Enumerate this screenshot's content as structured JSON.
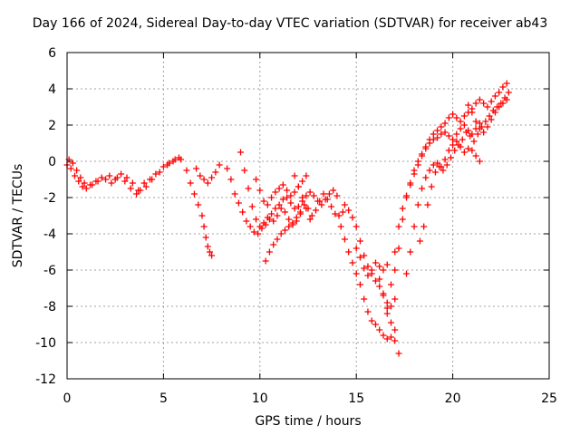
{
  "chart_data": {
    "type": "scatter",
    "title": "Day 166 of 2024, Sidereal Day-to-day VTEC variation (SDTVAR) for receiver ab43",
    "xlabel": "GPS time / hours",
    "ylabel": "SDTVAR / TECUs",
    "xlim": [
      0,
      25
    ],
    "ylim": [
      -12,
      6
    ],
    "xticks": [
      "0",
      "5",
      "10",
      "15",
      "20",
      "25"
    ],
    "yticks": [
      "-12",
      "-10",
      "-8",
      "-6",
      "-4",
      "-2",
      "0",
      "2",
      "4",
      "6"
    ],
    "grid": true,
    "marker": "+",
    "color": "#ff0000",
    "series": [
      {
        "x": [
          0.0,
          0.2,
          0.4,
          0.6,
          0.8,
          1.0,
          1.3,
          1.6,
          2.0,
          2.3,
          2.6,
          3.0,
          3.3,
          3.6,
          3.8,
          4.0,
          4.3,
          4.6,
          5.0,
          5.3,
          5.6,
          5.9
        ],
        "y": [
          -0.2,
          -0.4,
          -0.8,
          -1.1,
          -1.4,
          -1.5,
          -1.3,
          -1.1,
          -1.0,
          -1.2,
          -0.9,
          -1.1,
          -1.5,
          -1.8,
          -1.6,
          -1.2,
          -1.0,
          -0.7,
          -0.3,
          -0.1,
          0.1,
          0.1
        ]
      },
      {
        "x": [
          0.1,
          0.3,
          0.5,
          0.7,
          0.9,
          1.2,
          1.5,
          1.8,
          2.2,
          2.5,
          2.8,
          3.1,
          3.4,
          3.7,
          4.1,
          4.4,
          4.8,
          5.2,
          5.5,
          5.8
        ],
        "y": [
          0.1,
          -0.1,
          -0.5,
          -0.9,
          -1.2,
          -1.3,
          -1.1,
          -0.9,
          -0.8,
          -1.0,
          -0.7,
          -0.9,
          -1.2,
          -1.6,
          -1.4,
          -1.0,
          -0.6,
          -0.2,
          0.0,
          0.2
        ]
      },
      {
        "x": [
          6.2,
          6.4,
          6.6,
          6.8,
          7.0,
          7.1,
          7.2,
          7.3,
          7.4,
          7.5
        ],
        "y": [
          -0.5,
          -1.2,
          -1.8,
          -2.4,
          -3.0,
          -3.6,
          -4.2,
          -4.7,
          -5.0,
          -5.2
        ]
      },
      {
        "x": [
          6.7,
          6.9,
          7.1,
          7.3,
          7.5,
          7.7,
          7.9
        ],
        "y": [
          -0.4,
          -0.8,
          -1.0,
          -1.2,
          -0.9,
          -0.6,
          -0.2
        ]
      },
      {
        "x": [
          8.3,
          8.5,
          8.7,
          8.9,
          9.1,
          9.3,
          9.5,
          9.7,
          9.9,
          10.1,
          10.3,
          10.5,
          10.7,
          10.9,
          11.1,
          11.3,
          11.5,
          11.7,
          11.9,
          12.1,
          12.3,
          12.5,
          12.7,
          12.9,
          13.1,
          13.3,
          13.5,
          13.7,
          13.9,
          14.1,
          14.3
        ],
        "y": [
          -0.4,
          -1.0,
          -1.8,
          -2.3,
          -2.8,
          -3.3,
          -3.6,
          -3.9,
          -4.0,
          -3.7,
          -3.5,
          -3.2,
          -3.3,
          -3.0,
          -2.6,
          -2.8,
          -3.2,
          -3.5,
          -3.3,
          -2.8,
          -2.4,
          -2.6,
          -3.0,
          -2.7,
          -2.2,
          -1.8,
          -2.1,
          -2.5,
          -2.9,
          -3.0,
          -2.8
        ]
      },
      {
        "x": [
          9.0,
          9.2,
          9.4,
          9.6,
          9.8,
          10.0,
          10.2,
          10.4,
          10.6,
          10.8,
          11.0,
          11.2,
          11.4,
          11.6,
          11.8,
          12.0,
          12.2,
          12.4,
          12.6,
          12.8,
          13.0,
          13.2,
          13.4,
          13.6,
          13.8,
          14.0
        ],
        "y": [
          0.5,
          -0.5,
          -1.5,
          -2.5,
          -3.2,
          -3.6,
          -3.4,
          -3.1,
          -2.9,
          -2.6,
          -2.4,
          -2.1,
          -2.0,
          -2.3,
          -2.6,
          -2.5,
          -2.2,
          -1.9,
          -1.7,
          -1.9,
          -2.2,
          -2.4,
          -2.1,
          -1.8,
          -1.6,
          -1.9
        ]
      },
      {
        "x": [
          9.8,
          10.0,
          10.2,
          10.4,
          10.6,
          10.8,
          11.0,
          11.2,
          11.4,
          11.6,
          11.8,
          12.0,
          12.2,
          12.4
        ],
        "y": [
          -1.0,
          -1.6,
          -2.2,
          -2.4,
          -2.0,
          -1.7,
          -1.5,
          -1.3,
          -1.6,
          -1.9,
          -1.7,
          -1.4,
          -1.1,
          -0.8
        ]
      },
      {
        "x": [
          10.3,
          10.5,
          10.7,
          10.9,
          11.1,
          11.3,
          11.5,
          11.7,
          11.9,
          12.1
        ],
        "y": [
          -5.5,
          -5.0,
          -4.6,
          -4.3,
          -4.0,
          -3.8,
          -3.6,
          -3.4,
          -3.1,
          -2.9
        ]
      },
      {
        "x": [
          11.8,
          12.0,
          12.2,
          12.4,
          12.6
        ],
        "y": [
          -0.8,
          -1.4,
          -2.0,
          -2.6,
          -3.2
        ]
      },
      {
        "x": [
          14.2,
          14.4,
          14.6,
          14.8,
          15.0,
          15.2,
          15.4,
          15.6,
          15.8,
          16.0,
          16.2,
          16.4,
          16.6,
          16.8,
          17.0
        ],
        "y": [
          -3.6,
          -4.3,
          -5.0,
          -5.6,
          -6.2,
          -6.8,
          -7.6,
          -8.3,
          -8.8,
          -9.0,
          -9.3,
          -9.6,
          -9.8,
          -9.7,
          -9.3
        ]
      },
      {
        "x": [
          14.4,
          14.6,
          14.8,
          15.0,
          15.2,
          15.4,
          15.6,
          15.8,
          16.0,
          16.2,
          16.4,
          16.6,
          16.8,
          17.0
        ],
        "y": [
          -2.4,
          -2.7,
          -3.1,
          -3.6,
          -4.4,
          -5.2,
          -5.8,
          -6.2,
          -6.6,
          -6.9,
          -7.3,
          -7.8,
          -8.0,
          -7.6
        ]
      },
      {
        "x": [
          15.0,
          15.2,
          15.4,
          15.6,
          15.8,
          16.0,
          16.2,
          16.4,
          16.6
        ],
        "y": [
          -4.8,
          -5.3,
          -5.9,
          -6.3,
          -6.0,
          -5.6,
          -5.8,
          -6.0,
          -5.7
        ]
      },
      {
        "x": [
          16.6,
          16.8,
          17.0,
          17.2,
          17.4,
          17.6,
          17.8,
          18.0,
          18.2,
          18.4,
          18.6,
          18.8,
          19.0,
          19.2,
          19.4,
          19.6,
          19.8,
          20.0,
          20.2,
          20.4,
          20.6,
          20.8,
          21.0,
          21.2,
          21.4,
          21.6,
          21.8,
          22.0,
          22.2,
          22.4,
          22.6,
          22.8
        ],
        "y": [
          -8.4,
          -6.8,
          -5.0,
          -3.6,
          -2.6,
          -1.9,
          -1.3,
          -0.7,
          -0.2,
          0.3,
          0.8,
          1.2,
          1.5,
          1.7,
          1.9,
          2.1,
          2.4,
          2.6,
          2.4,
          2.2,
          2.5,
          2.7,
          2.9,
          3.2,
          3.4,
          3.2,
          3.0,
          3.3,
          3.6,
          3.8,
          4.1,
          4.3
        ]
      },
      {
        "x": [
          17.0,
          17.2,
          17.4,
          17.6,
          17.8,
          18.0,
          18.2,
          18.4,
          18.6,
          18.8,
          19.0,
          19.2,
          19.4,
          19.6,
          19.8,
          20.0,
          20.2,
          20.4,
          20.6,
          20.8,
          21.0,
          21.2,
          21.4
        ],
        "y": [
          -6.0,
          -4.8,
          -3.2,
          -2.0,
          -1.2,
          -0.5,
          0.0,
          0.4,
          0.7,
          1.0,
          1.2,
          1.3,
          1.5,
          1.6,
          1.4,
          1.2,
          1.5,
          1.8,
          2.0,
          1.7,
          1.5,
          1.8,
          2.1
        ]
      },
      {
        "x": [
          17.6,
          17.8,
          18.0,
          18.2,
          18.4,
          18.6,
          18.8,
          19.0,
          19.2,
          19.4,
          19.6,
          19.8,
          20.0,
          20.2,
          20.4,
          20.6,
          20.8,
          21.0,
          21.2,
          21.4
        ],
        "y": [
          -6.2,
          -5.0,
          -3.6,
          -2.4,
          -1.5,
          -0.9,
          -0.5,
          -0.2,
          -0.1,
          -0.3,
          0.1,
          0.6,
          0.9,
          1.1,
          0.8,
          0.5,
          0.7,
          0.6,
          0.3,
          0.0
        ]
      },
      {
        "x": [
          18.3,
          18.5,
          18.7,
          18.9,
          19.1,
          19.3,
          19.5,
          19.7,
          19.9,
          20.1,
          20.3,
          20.5,
          20.7,
          20.9,
          21.1,
          21.3,
          21.5,
          21.7,
          21.9,
          22.1,
          22.3,
          22.5,
          22.7,
          22.9
        ],
        "y": [
          -4.4,
          -3.6,
          -2.4,
          -1.4,
          -0.6,
          -0.3,
          -0.5,
          -0.2,
          0.2,
          0.6,
          0.9,
          1.2,
          1.6,
          1.4,
          1.1,
          1.5,
          1.9,
          2.2,
          2.5,
          2.8,
          3.0,
          3.2,
          3.5,
          3.8
        ]
      },
      {
        "x": [
          20.8,
          21.0,
          21.2,
          21.4,
          21.6,
          21.8,
          22.0,
          22.2,
          22.4,
          22.6,
          22.8
        ],
        "y": [
          3.1,
          2.7,
          2.2,
          1.8,
          1.6,
          1.9,
          2.3,
          2.7,
          3.0,
          3.2,
          3.4
        ]
      },
      {
        "x": [
          16.2,
          16.4,
          16.6,
          16.8,
          17.0,
          17.2
        ],
        "y": [
          -6.5,
          -7.4,
          -8.1,
          -8.9,
          -9.9,
          -10.6
        ]
      }
    ]
  }
}
